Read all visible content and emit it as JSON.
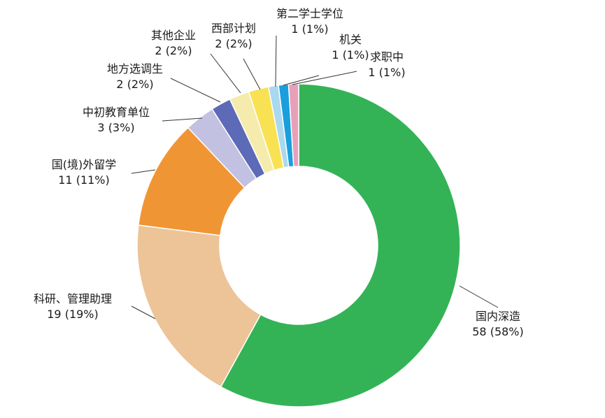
{
  "chart_data": {
    "type": "pie",
    "variant": "donut",
    "legend": "none",
    "slices": [
      {
        "name": "国内深造",
        "value": 58,
        "percent_label": "58 (58%)",
        "color": "#34b356"
      },
      {
        "name": "科研、管理助理",
        "value": 19,
        "percent_label": "19 (19%)",
        "color": "#ecc498"
      },
      {
        "name": "国(境)外留学",
        "value": 11,
        "percent_label": "11 (11%)",
        "color": "#f09534"
      },
      {
        "name": "中初教育单位",
        "value": 3,
        "percent_label": "3 (3%)",
        "color": "#c2c1e1"
      },
      {
        "name": "地方选调生",
        "value": 2,
        "percent_label": "2 (2%)",
        "color": "#5d6ab8"
      },
      {
        "name": "其他企业",
        "value": 2,
        "percent_label": "2 (2%)",
        "color": "#f5ebac"
      },
      {
        "name": "西部计划",
        "value": 2,
        "percent_label": "2 (2%)",
        "color": "#f8e253"
      },
      {
        "name": "第二学士学位",
        "value": 1,
        "percent_label": "1 (1%)",
        "color": "#a9d9ee"
      },
      {
        "name": "机关",
        "value": 1,
        "percent_label": "1 (1%)",
        "color": "#1a9fdc"
      },
      {
        "name": "求职中",
        "value": 1,
        "percent_label": "1 (1%)",
        "color": "#e6a1b8"
      }
    ]
  }
}
